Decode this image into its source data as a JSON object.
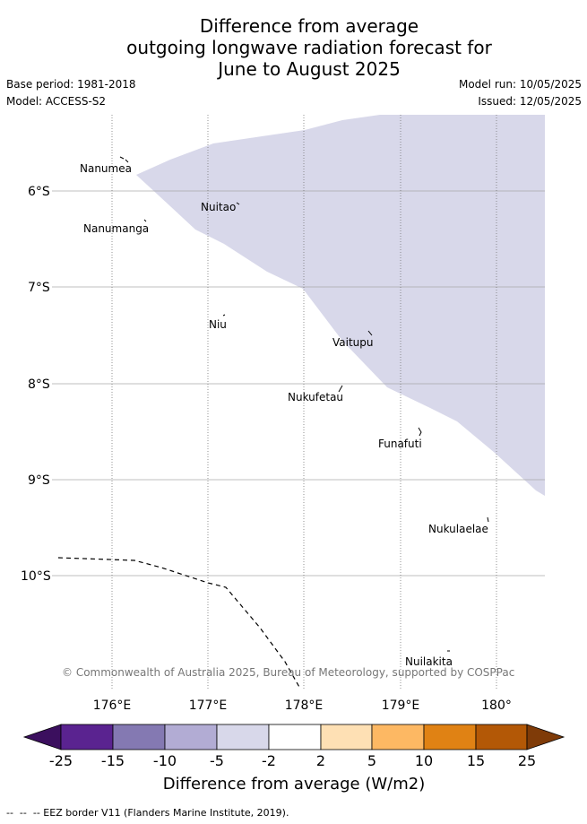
{
  "title": {
    "line1": "Difference from average",
    "line2": "outgoing longwave radiation forecast for",
    "line3": "June to August 2025"
  },
  "meta": {
    "base_period": "Base period: 1981-2018",
    "model": "Model: ACCESS-S2",
    "model_run": "Model run: 10/05/2025",
    "issued": "Issued: 12/05/2025"
  },
  "map": {
    "x_ticks": [
      "176°E",
      "177°E",
      "178°E",
      "179°E",
      "180°"
    ],
    "y_ticks": [
      "6°S",
      "7°S",
      "8°S",
      "9°S",
      "10°S"
    ],
    "islands": [
      "Nanumea",
      "Nuitao",
      "Nanumanga",
      "Niu",
      "Vaitupu",
      "Nukufetau",
      "Funafuti",
      "Nukulaelae",
      "Nuilakita"
    ],
    "copyright": "© Commonwealth of Australia 2025, Bureau of Meteorology, supported by COSPPac",
    "shaded_category": "-5 to -2",
    "colors": {
      "shade": "#d8d8ea",
      "grid": "#aaaaaa",
      "eez": "#000000"
    }
  },
  "colorbar": {
    "ticks": [
      "-25",
      "-15",
      "-10",
      "-5",
      "-2",
      "2",
      "5",
      "10",
      "15",
      "25"
    ],
    "colors": [
      "#3b0f5e",
      "#5a2390",
      "#8479b2",
      "#b2acd4",
      "#d8d8ea",
      "#ffffff",
      "#fee0b4",
      "#fdb863",
      "#e08214",
      "#b35806",
      "#7f3b08"
    ],
    "label": "Difference from average (W/m2)"
  },
  "footer": "--  --  -- EEZ border V11 (Flanders Marine Institute, 2019)."
}
